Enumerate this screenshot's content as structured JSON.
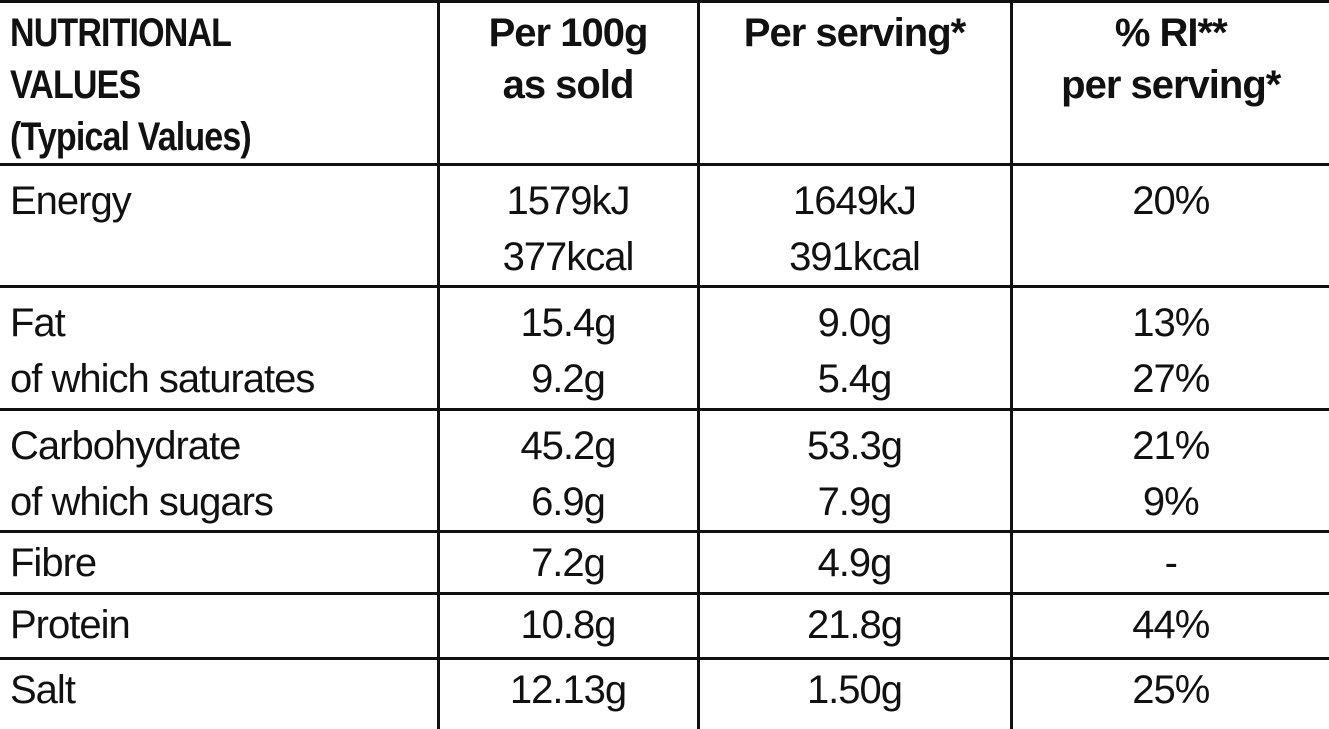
{
  "meta": {
    "background": "#ffffff",
    "text_color": "#111111",
    "grid_color": "#111111"
  },
  "header": {
    "nutrient_col": "NUTRITIONAL VALUES\n(Typical Values)",
    "per_100g_col": "Per 100g\nas sold",
    "per_serving_col": "Per serving*",
    "ri_col": "% RI**\nper serving*"
  },
  "rows": [
    {
      "name": "energy",
      "label": "Energy",
      "per_100g": "1579kJ\n377kcal",
      "per_serving": "1649kJ\n391kcal",
      "ri": "20%"
    },
    {
      "name": "fat",
      "label": "Fat\nof which saturates",
      "per_100g": "15.4g\n9.2g",
      "per_serving": "9.0g\n5.4g",
      "ri": "13%\n27%"
    },
    {
      "name": "carbohydrate",
      "label": "Carbohydrate\nof which sugars",
      "per_100g": "45.2g\n6.9g",
      "per_serving": "53.3g\n7.9g",
      "ri": "21%\n9%"
    },
    {
      "name": "fibre",
      "label": "Fibre",
      "per_100g": "7.2g",
      "per_serving": "4.9g",
      "ri": "-"
    },
    {
      "name": "protein",
      "label": "Protein",
      "per_100g": "10.8g",
      "per_serving": "21.8g",
      "ri": "44%"
    },
    {
      "name": "salt",
      "label": "Salt",
      "per_100g": "12.13g",
      "per_serving": "1.50g",
      "ri": "25%"
    }
  ]
}
